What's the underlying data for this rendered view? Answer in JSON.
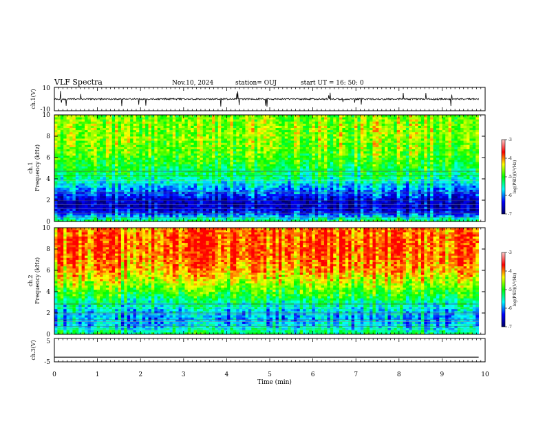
{
  "header": {
    "title": "VLF Spectra",
    "date": "Nov.10, 2024",
    "station": "station= OUJ",
    "start": "start  UT =   16: 50: 0"
  },
  "chart_data": [
    {
      "type": "line",
      "panel": "ch1-waveform",
      "ylabel": "ch.1(V)",
      "y_tick_labels": [
        "10",
        "-10"
      ],
      "ylim": [
        -10,
        10
      ],
      "xlim": [
        0,
        10
      ],
      "trace_level": 0,
      "noise": "spiky"
    },
    {
      "type": "heatmap",
      "panel": "ch1-spectrogram",
      "ylabel_line1": "ch.1",
      "ylabel_line2": "Frequency (kHz)",
      "ylim": [
        0,
        10
      ],
      "xlim": [
        0,
        9.85
      ],
      "y_tick_labels": [
        "0",
        "2",
        "4",
        "6",
        "8",
        "10"
      ],
      "y_ticks": [
        0,
        2,
        4,
        6,
        8,
        10
      ],
      "colorbar": {
        "label": "log(PSD)(V²/Hz)",
        "tick_labels": [
          "-3",
          "-4",
          "-5",
          "-6",
          "-7"
        ],
        "ticks": [
          -3,
          -4,
          -5,
          -6,
          -7
        ],
        "range": [
          -7,
          -3
        ]
      },
      "profile_freq_khz": [
        0,
        0.5,
        1,
        1.5,
        2,
        2.5,
        3,
        3.5,
        4,
        5,
        6,
        7,
        8,
        9,
        10
      ],
      "profile_log_psd": [
        -4.6,
        -5.6,
        -6.3,
        -6.5,
        -6.4,
        -6.0,
        -5.7,
        -5.4,
        -5.0,
        -4.7,
        -4.4,
        -4.2,
        -4.1,
        -4.1,
        -4.2
      ]
    },
    {
      "type": "heatmap",
      "panel": "ch2-spectrogram",
      "ylabel_line1": "ch.2",
      "ylabel_line2": "Frequency (kHz)",
      "ylim": [
        0,
        10
      ],
      "xlim": [
        0,
        9.85
      ],
      "y_tick_labels": [
        "0",
        "2",
        "4",
        "6",
        "8",
        "10"
      ],
      "y_ticks": [
        0,
        2,
        4,
        6,
        8,
        10
      ],
      "colorbar": {
        "label": "log(PSD)(V²/Hz)",
        "tick_labels": [
          "-3",
          "-4",
          "-5",
          "-6",
          "-7"
        ],
        "ticks": [
          -3,
          -4,
          -5,
          -6,
          -7
        ],
        "range": [
          -7,
          -3
        ]
      },
      "profile_freq_khz": [
        0,
        0.5,
        1,
        1.5,
        2,
        2.5,
        3,
        3.5,
        4,
        5,
        6,
        7,
        8,
        9,
        10
      ],
      "profile_log_psd": [
        -4.8,
        -5.3,
        -5.6,
        -5.7,
        -5.6,
        -5.3,
        -5.1,
        -4.8,
        -4.5,
        -4.0,
        -3.6,
        -3.4,
        -3.3,
        -3.3,
        -3.4
      ]
    },
    {
      "type": "line",
      "panel": "ch3-waveform",
      "ylabel": "ch.3(V)",
      "y_tick_labels": [
        "5",
        "-5"
      ],
      "ylim": [
        -5,
        5
      ],
      "xlim": [
        0,
        10
      ],
      "trace_level": -3,
      "noise": "flat"
    }
  ],
  "x_axis": {
    "label": "Time (min)",
    "tick_labels": [
      "0",
      "1",
      "2",
      "3",
      "4",
      "5",
      "6",
      "7",
      "8",
      "9",
      "10"
    ],
    "ticks": [
      0,
      1,
      2,
      3,
      4,
      5,
      6,
      7,
      8,
      9,
      10
    ],
    "range": [
      0,
      10
    ]
  },
  "colors": {
    "colormap": [
      "#000066",
      "#0000ff",
      "#00ffff",
      "#00ff00",
      "#ffff00",
      "#ff0000",
      "#ffc8c8"
    ]
  }
}
